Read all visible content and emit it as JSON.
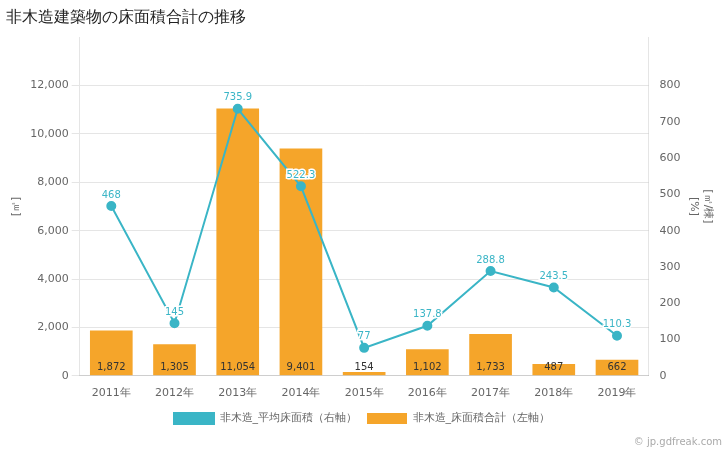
{
  "chart_data": {
    "type": "bar",
    "title": "非木造建築物の床面積合計の推移",
    "categories": [
      "2011年",
      "2012年",
      "2013年",
      "2014年",
      "2015年",
      "2016年",
      "2017年",
      "2018年",
      "2019年"
    ],
    "series": [
      {
        "name": "非木造_床面積合計（左軸）",
        "type": "bar",
        "color": "#f5a52a",
        "values": [
          1872,
          1305,
          11054,
          9401,
          154,
          1102,
          1733,
          487,
          662
        ],
        "value_labels": [
          "1,872",
          "1,305",
          "11,054",
          "9,401",
          "154",
          "1,102",
          "1,733",
          "487",
          "662"
        ]
      },
      {
        "name": "非木造_平均床面積（右軸）",
        "type": "line",
        "axis": "y2",
        "color": "#3ab5c6",
        "marker": "circle",
        "values": [
          468,
          145,
          735.9,
          522.3,
          77,
          137.8,
          288.8,
          243.5,
          110.3
        ]
      }
    ],
    "ylabel": "[㎡]",
    "y2label": [
      "[㎡/棟]",
      "[%]"
    ],
    "ylim": [
      0,
      14000
    ],
    "yticks": [
      0,
      {
        "value": 2000,
        "label": "2,000"
      },
      {
        "value": 4000,
        "label": "4,000"
      },
      {
        "value": 6000,
        "label": "6,000"
      },
      {
        "value": 8000,
        "label": "8,000"
      },
      {
        "value": 10000,
        "label": "10,000"
      },
      {
        "value": 12000,
        "label": "12,000"
      }
    ],
    "y2lim": [
      0,
      933.33
    ],
    "y2ticks": [
      0,
      100,
      200,
      300,
      400,
      500,
      600,
      700,
      800
    ],
    "grid": true,
    "legend": "bottom",
    "data_labels": true,
    "annotations": [
      "© jp.gdfreak.com"
    ]
  }
}
